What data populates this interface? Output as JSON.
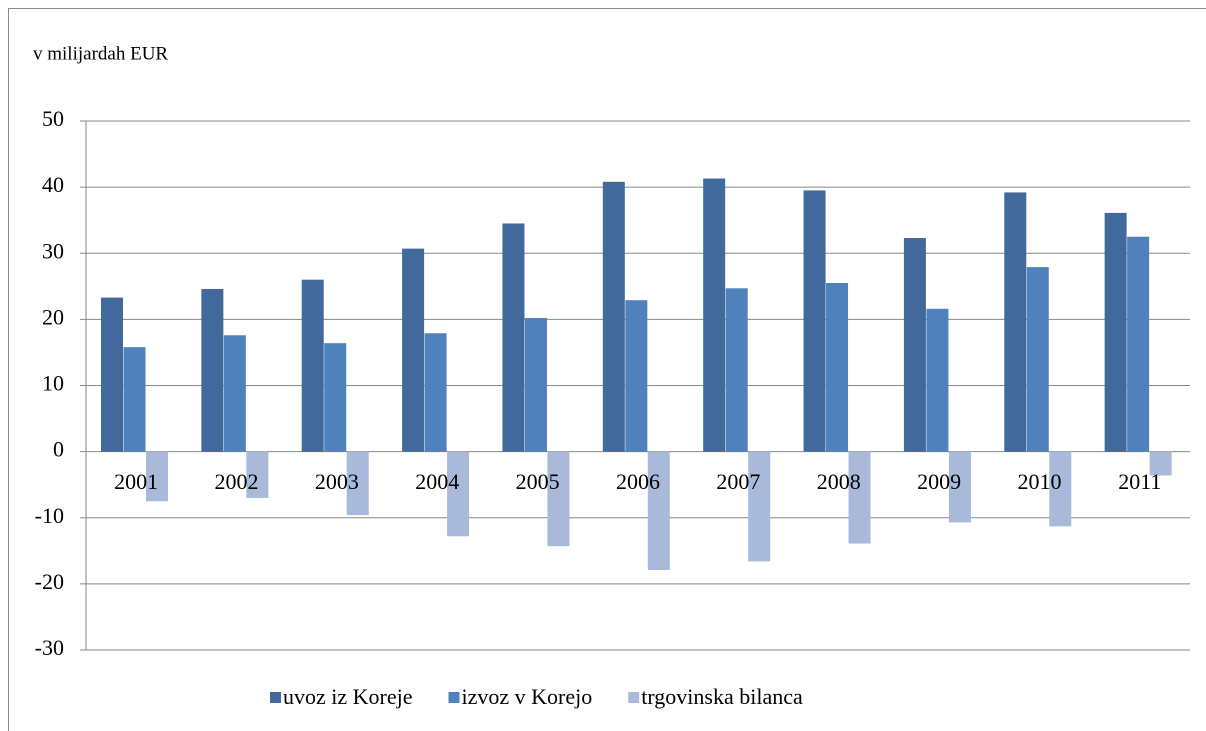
{
  "chart_data": {
    "type": "bar",
    "y_label": "v milijardah EUR",
    "categories": [
      "2001",
      "2002",
      "2003",
      "2004",
      "2005",
      "2006",
      "2007",
      "2008",
      "2009",
      "2010",
      "2011"
    ],
    "series": [
      {
        "name": "uvoz iz Koreje",
        "color": "#41699c",
        "values": [
          23.3,
          24.6,
          26.0,
          30.7,
          34.5,
          40.8,
          41.3,
          39.5,
          32.3,
          39.2,
          36.1
        ]
      },
      {
        "name": "izvoz v Korejo",
        "color": "#4f81bd",
        "values": [
          15.8,
          17.6,
          16.4,
          17.9,
          20.2,
          22.9,
          24.7,
          25.5,
          21.6,
          27.9,
          32.5
        ]
      },
      {
        "name": "trgovinska bilanca",
        "color": "#a8b9d9",
        "values": [
          -7.5,
          -7.0,
          -9.6,
          -12.8,
          -14.3,
          -17.9,
          -16.6,
          -13.9,
          -10.7,
          -11.3,
          -3.6
        ]
      }
    ],
    "ylim": [
      -30,
      50
    ],
    "yticks": [
      -30,
      -20,
      -10,
      0,
      10,
      20,
      30,
      40,
      50
    ],
    "grid": true,
    "legend": "bottom"
  }
}
